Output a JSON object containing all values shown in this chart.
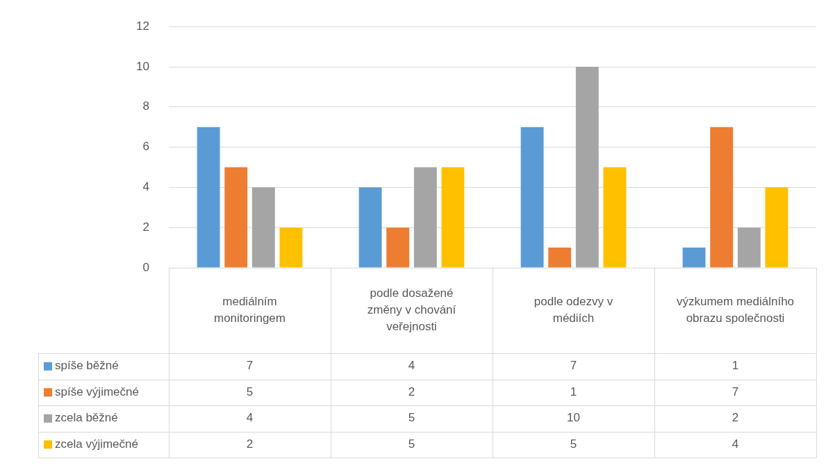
{
  "chart_data": {
    "type": "bar",
    "categories": [
      "mediálním monitoringem",
      "podle dosažené změny v chování veřejnosti",
      "podle odezvy v médiích",
      "výzkumem mediálního obrazu společnosti"
    ],
    "series": [
      {
        "name": "spíše běžné",
        "color": "#5b9bd5",
        "values": [
          7,
          4,
          7,
          1
        ]
      },
      {
        "name": "spíše výjimečné",
        "color": "#ed7d31",
        "values": [
          5,
          2,
          1,
          7
        ]
      },
      {
        "name": "zcela běžné",
        "color": "#a5a5a5",
        "values": [
          4,
          5,
          10,
          2
        ]
      },
      {
        "name": "zcela výjimečné",
        "color": "#ffc000",
        "values": [
          2,
          5,
          5,
          4
        ]
      }
    ],
    "ylim": [
      0,
      12
    ],
    "yticks": [
      0,
      2,
      4,
      6,
      8,
      10,
      12
    ],
    "grid": "y",
    "legend": "bottom",
    "data_labels": true
  }
}
